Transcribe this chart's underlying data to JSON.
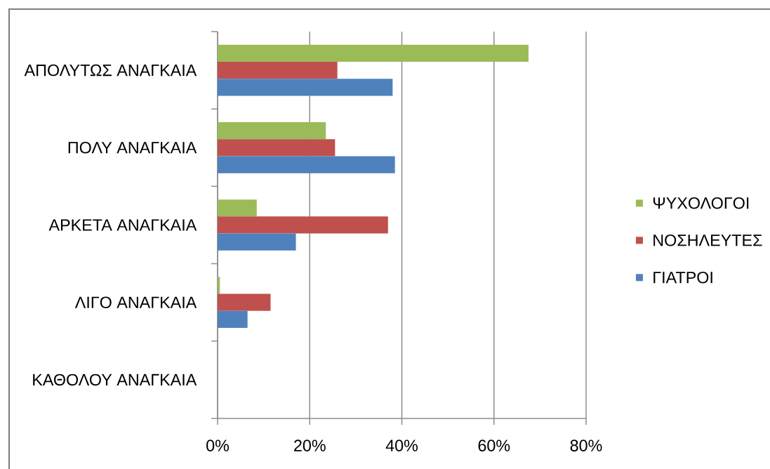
{
  "chart_data": {
    "type": "bar",
    "orientation": "horizontal",
    "categories": [
      "ΑΠΟΛΥΤΩΣ ΑΝΑΓΚΑΙΑ",
      "ΠΟΛΥ ΑΝΑΓΚΑΙΑ",
      "ΑΡΚΕΤΑ ΑΝΑΓΚΑΙΑ",
      "ΛΙΓΟ ΑΝΑΓΚΑΙΑ",
      "ΚΑΘΟΛΟΥ ΑΝΑΓΚΑΙΑ"
    ],
    "series": [
      {
        "name": "ΨΥΧΟΛΟΓΟΙ",
        "color": "#9bbb59",
        "values": [
          67.5,
          23.5,
          8.5,
          0.5,
          0
        ]
      },
      {
        "name": "ΝΟΣΗΛΕΥΤΕΣ",
        "color": "#c0504d",
        "values": [
          26,
          25.5,
          37,
          11.5,
          0
        ]
      },
      {
        "name": "ΓΙΑΤΡΟΙ",
        "color": "#4f81bd",
        "values": [
          38,
          38.5,
          17,
          6.5,
          0
        ]
      }
    ],
    "xlim": [
      0,
      80
    ],
    "xticks": [
      {
        "value": 0,
        "label": "0%"
      },
      {
        "value": 20,
        "label": "20%"
      },
      {
        "value": 40,
        "label": "40%"
      },
      {
        "value": 60,
        "label": "60%"
      },
      {
        "value": 80,
        "label": "80%"
      }
    ],
    "grid": "x",
    "legend": "right"
  }
}
